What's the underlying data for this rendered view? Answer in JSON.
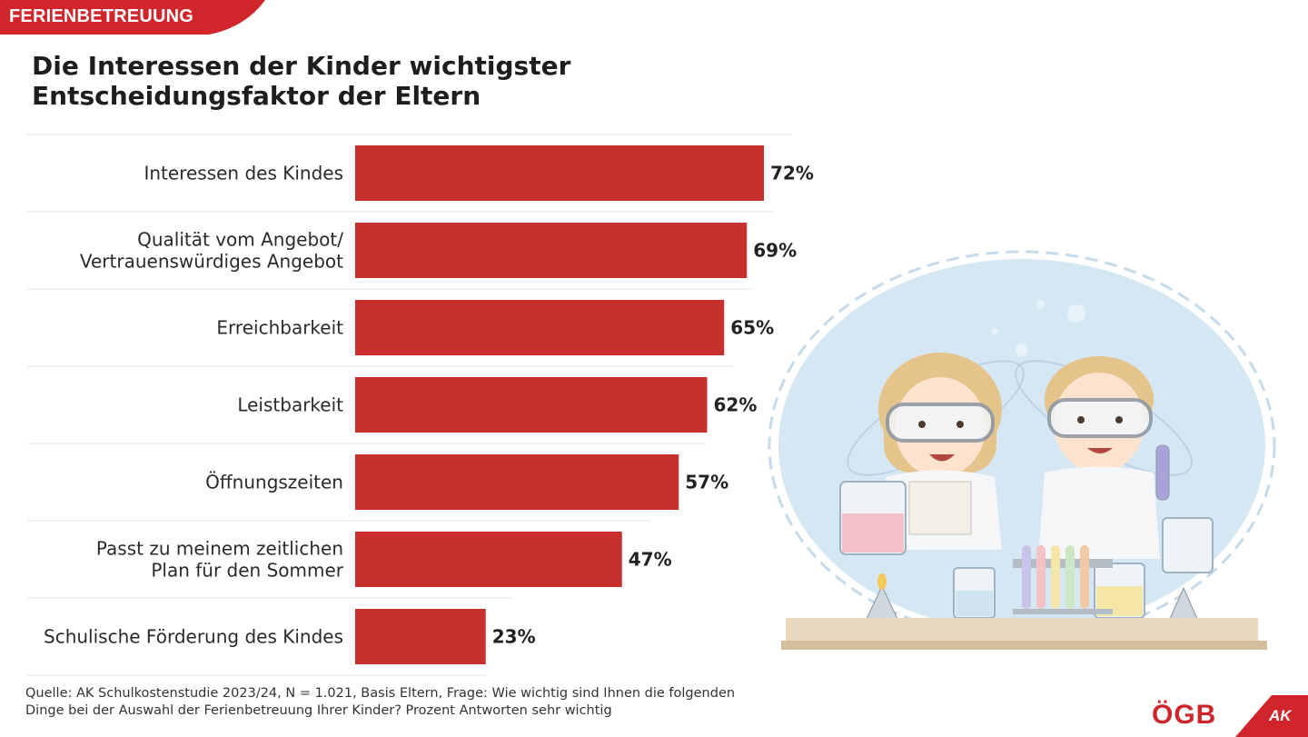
{
  "header": {
    "tag": "FERIENBETREUUNG",
    "title_line1": "Die Interessen der Kinder wichtigster",
    "title_line2": "Entscheidungsfaktor der Eltern"
  },
  "chart_data": {
    "type": "bar",
    "orientation": "horizontal",
    "categories": [
      [
        "Interessen des Kindes"
      ],
      [
        "Qualität vom Angebot/",
        "Vertrauenswürdiges Angebot"
      ],
      [
        "Erreichbarkeit"
      ],
      [
        "Leistbarkeit"
      ],
      [
        "Öffnungszeiten"
      ],
      [
        "Passt zu meinem zeitlichen",
        "Plan für den Sommer"
      ],
      [
        "Schulische Förderung des Kindes"
      ]
    ],
    "values": [
      72,
      69,
      65,
      62,
      57,
      47,
      23
    ],
    "value_labels": [
      "72%",
      "69%",
      "65%",
      "62%",
      "57%",
      "47%",
      "23%"
    ],
    "xlim": [
      0,
      100
    ],
    "bar_color": "#c8302e",
    "grid": false,
    "legend": "none"
  },
  "footer": {
    "source_line1": "Quelle: AK Schulkostenstudie 2023/24, N = 1.021, Basis Eltern, Frage: Wie wichtig sind Ihnen die folgenden",
    "source_line2": "Dinge bei der Auswahl der Ferienbetreuung Ihrer Kinder? Prozent Antworten sehr wichtig",
    "logo_ogb": "ÖGB",
    "logo_ak": "AK"
  },
  "colors": {
    "accent": "#d0252b",
    "bar": "#c8302e",
    "illustration_bg": "#d6e7f4",
    "table": "#e9d7bd"
  }
}
